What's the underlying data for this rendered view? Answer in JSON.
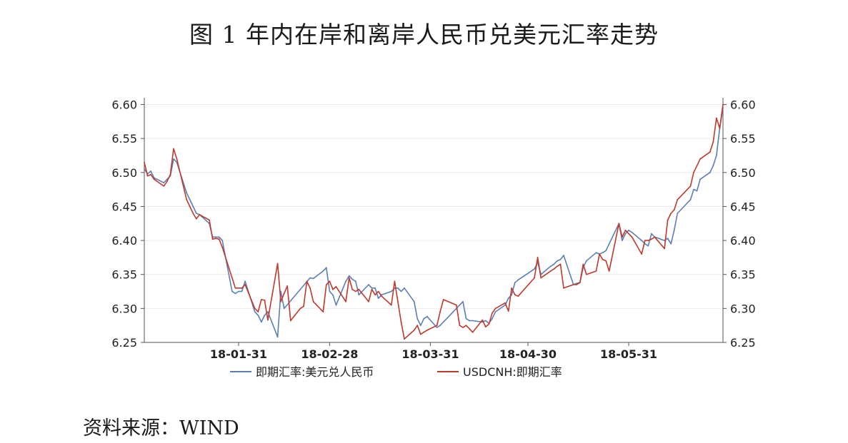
{
  "figure": {
    "title": "图 1 年内在岸和离岸人民币兑美元汇率走势",
    "source": "资料来源：WIND"
  },
  "chart_data": {
    "type": "line",
    "title": "",
    "xlabel": "",
    "ylabel": "",
    "ylim": [
      6.25,
      6.61
    ],
    "yticks": [
      "6.60",
      "6.55",
      "6.50",
      "6.45",
      "6.40",
      "6.35",
      "6.30",
      "6.25"
    ],
    "ytick_values": [
      6.6,
      6.55,
      6.5,
      6.45,
      6.4,
      6.35,
      6.3,
      6.25
    ],
    "xlim": [
      "2018-01-02",
      "2018-06-29"
    ],
    "xticks": [
      "18-01-31",
      "18-02-28",
      "18-03-31",
      "18-04-30",
      "18-05-31"
    ],
    "xtick_dates": [
      "2018-01-31",
      "2018-02-28",
      "2018-03-31",
      "2018-04-30",
      "2018-05-31"
    ],
    "grid": true,
    "dual_y_axis": true,
    "legend_position": "bottom-center",
    "series": [
      {
        "name": "即期汇率:美元兑人民币",
        "color": "#5a7fb6",
        "points": [
          [
            "2018-01-02",
            6.505
          ],
          [
            "2018-01-03",
            6.498
          ],
          [
            "2018-01-04",
            6.502
          ],
          [
            "2018-01-05",
            6.492
          ],
          [
            "2018-01-08",
            6.485
          ],
          [
            "2018-01-09",
            6.49
          ],
          [
            "2018-01-10",
            6.495
          ],
          [
            "2018-01-11",
            6.52
          ],
          [
            "2018-01-12",
            6.515
          ],
          [
            "2018-01-15",
            6.47
          ],
          [
            "2018-01-16",
            6.46
          ],
          [
            "2018-01-17",
            6.45
          ],
          [
            "2018-01-18",
            6.44
          ],
          [
            "2018-01-19",
            6.438
          ],
          [
            "2018-01-22",
            6.425
          ],
          [
            "2018-01-23",
            6.405
          ],
          [
            "2018-01-24",
            6.405
          ],
          [
            "2018-01-25",
            6.405
          ],
          [
            "2018-01-26",
            6.4
          ],
          [
            "2018-01-29",
            6.325
          ],
          [
            "2018-01-30",
            6.322
          ],
          [
            "2018-01-31",
            6.325
          ],
          [
            "2018-02-01",
            6.325
          ],
          [
            "2018-02-02",
            6.34
          ],
          [
            "2018-02-05",
            6.295
          ],
          [
            "2018-02-06",
            6.29
          ],
          [
            "2018-02-07",
            6.28
          ],
          [
            "2018-02-08",
            6.29
          ],
          [
            "2018-02-09",
            6.295
          ],
          [
            "2018-02-12",
            6.258
          ],
          [
            "2018-02-13",
            6.325
          ],
          [
            "2018-02-14",
            6.3
          ],
          [
            "2018-02-22",
            6.345
          ],
          [
            "2018-02-23",
            6.344
          ],
          [
            "2018-02-26",
            6.355
          ],
          [
            "2018-02-27",
            6.36
          ],
          [
            "2018-02-28",
            6.325
          ],
          [
            "2018-03-01",
            6.32
          ],
          [
            "2018-03-02",
            6.305
          ],
          [
            "2018-03-05",
            6.34
          ],
          [
            "2018-03-06",
            6.348
          ],
          [
            "2018-03-07",
            6.343
          ],
          [
            "2018-03-08",
            6.34
          ],
          [
            "2018-03-09",
            6.32
          ],
          [
            "2018-03-12",
            6.335
          ],
          [
            "2018-03-13",
            6.33
          ],
          [
            "2018-03-14",
            6.33
          ],
          [
            "2018-03-15",
            6.315
          ],
          [
            "2018-03-16",
            6.32
          ],
          [
            "2018-03-19",
            6.325
          ],
          [
            "2018-03-20",
            6.33
          ],
          [
            "2018-03-21",
            6.33
          ],
          [
            "2018-03-22",
            6.325
          ],
          [
            "2018-03-23",
            6.33
          ],
          [
            "2018-03-26",
            6.31
          ],
          [
            "2018-03-27",
            6.285
          ],
          [
            "2018-03-28",
            6.275
          ],
          [
            "2018-03-29",
            6.285
          ],
          [
            "2018-03-30",
            6.288
          ],
          [
            "2018-04-02",
            6.272
          ],
          [
            "2018-04-03",
            6.275
          ],
          [
            "2018-04-04",
            6.28
          ],
          [
            "2018-04-08",
            6.3
          ],
          [
            "2018-04-09",
            6.305
          ],
          [
            "2018-04-10",
            6.31
          ],
          [
            "2018-04-11",
            6.285
          ],
          [
            "2018-04-12",
            6.282
          ],
          [
            "2018-04-13",
            6.282
          ],
          [
            "2018-04-16",
            6.28
          ],
          [
            "2018-04-17",
            6.282
          ],
          [
            "2018-04-18",
            6.278
          ],
          [
            "2018-04-19",
            6.285
          ],
          [
            "2018-04-20",
            6.295
          ],
          [
            "2018-04-23",
            6.305
          ],
          [
            "2018-04-24",
            6.315
          ],
          [
            "2018-04-25",
            6.32
          ],
          [
            "2018-04-26",
            6.338
          ],
          [
            "2018-04-27",
            6.342
          ],
          [
            "2018-05-02",
            6.358
          ],
          [
            "2018-05-03",
            6.368
          ],
          [
            "2018-05-04",
            6.35
          ],
          [
            "2018-05-07",
            6.362
          ],
          [
            "2018-05-08",
            6.365
          ],
          [
            "2018-05-09",
            6.37
          ],
          [
            "2018-05-10",
            6.372
          ],
          [
            "2018-05-11",
            6.378
          ],
          [
            "2018-05-14",
            6.335
          ],
          [
            "2018-05-15",
            6.337
          ],
          [
            "2018-05-16",
            6.338
          ],
          [
            "2018-05-17",
            6.36
          ],
          [
            "2018-05-18",
            6.37
          ],
          [
            "2018-05-21",
            6.382
          ],
          [
            "2018-05-22",
            6.38
          ],
          [
            "2018-05-23",
            6.382
          ],
          [
            "2018-05-24",
            6.385
          ],
          [
            "2018-05-25",
            6.395
          ],
          [
            "2018-05-28",
            6.425
          ],
          [
            "2018-05-29",
            6.4
          ],
          [
            "2018-05-30",
            6.41
          ],
          [
            "2018-05-31",
            6.415
          ],
          [
            "2018-06-01",
            6.412
          ],
          [
            "2018-06-04",
            6.4
          ],
          [
            "2018-06-05",
            6.395
          ],
          [
            "2018-06-06",
            6.392
          ],
          [
            "2018-06-07",
            6.41
          ],
          [
            "2018-06-08",
            6.405
          ],
          [
            "2018-06-11",
            6.4
          ],
          [
            "2018-06-12",
            6.403
          ],
          [
            "2018-06-13",
            6.395
          ],
          [
            "2018-06-14",
            6.415
          ],
          [
            "2018-06-15",
            6.44
          ],
          [
            "2018-06-19",
            6.46
          ],
          [
            "2018-06-20",
            6.475
          ],
          [
            "2018-06-21",
            6.473
          ],
          [
            "2018-06-22",
            6.49
          ],
          [
            "2018-06-25",
            6.5
          ],
          [
            "2018-06-26",
            6.51
          ],
          [
            "2018-06-27",
            6.525
          ],
          [
            "2018-06-28",
            6.565
          ],
          [
            "2018-06-29",
            6.595
          ]
        ]
      },
      {
        "name": "USDCNH:即期汇率",
        "color": "#c0392b",
        "points": [
          [
            "2018-01-02",
            6.515
          ],
          [
            "2018-01-03",
            6.495
          ],
          [
            "2018-01-04",
            6.497
          ],
          [
            "2018-01-05",
            6.49
          ],
          [
            "2018-01-08",
            6.48
          ],
          [
            "2018-01-09",
            6.487
          ],
          [
            "2018-01-10",
            6.497
          ],
          [
            "2018-01-11",
            6.535
          ],
          [
            "2018-01-12",
            6.52
          ],
          [
            "2018-01-15",
            6.46
          ],
          [
            "2018-01-16",
            6.45
          ],
          [
            "2018-01-17",
            6.44
          ],
          [
            "2018-01-18",
            6.432
          ],
          [
            "2018-01-19",
            6.438
          ],
          [
            "2018-01-22",
            6.43
          ],
          [
            "2018-01-23",
            6.402
          ],
          [
            "2018-01-24",
            6.403
          ],
          [
            "2018-01-25",
            6.402
          ],
          [
            "2018-01-26",
            6.39
          ],
          [
            "2018-01-29",
            6.345
          ],
          [
            "2018-01-30",
            6.33
          ],
          [
            "2018-01-31",
            6.33
          ],
          [
            "2018-02-01",
            6.33
          ],
          [
            "2018-02-02",
            6.335
          ],
          [
            "2018-02-05",
            6.3
          ],
          [
            "2018-02-06",
            6.295
          ],
          [
            "2018-02-07",
            6.313
          ],
          [
            "2018-02-08",
            6.312
          ],
          [
            "2018-02-09",
            6.283
          ],
          [
            "2018-02-12",
            6.366
          ],
          [
            "2018-02-13",
            6.31
          ],
          [
            "2018-02-14",
            6.322
          ],
          [
            "2018-02-15",
            6.333
          ],
          [
            "2018-02-16",
            6.282
          ],
          [
            "2018-02-19",
            6.3
          ],
          [
            "2018-02-20",
            6.303
          ],
          [
            "2018-02-21",
            6.34
          ],
          [
            "2018-02-22",
            6.33
          ],
          [
            "2018-02-23",
            6.31
          ],
          [
            "2018-02-26",
            6.295
          ],
          [
            "2018-02-27",
            6.335
          ],
          [
            "2018-02-28",
            6.34
          ],
          [
            "2018-03-01",
            6.328
          ],
          [
            "2018-03-02",
            6.332
          ],
          [
            "2018-03-05",
            6.31
          ],
          [
            "2018-03-06",
            6.345
          ],
          [
            "2018-03-07",
            6.328
          ],
          [
            "2018-03-08",
            6.325
          ],
          [
            "2018-03-09",
            6.328
          ],
          [
            "2018-03-12",
            6.31
          ],
          [
            "2018-03-13",
            6.328
          ],
          [
            "2018-03-14",
            6.32
          ],
          [
            "2018-03-15",
            6.325
          ],
          [
            "2018-03-16",
            6.318
          ],
          [
            "2018-03-19",
            6.305
          ],
          [
            "2018-03-20",
            6.34
          ],
          [
            "2018-03-21",
            6.31
          ],
          [
            "2018-03-22",
            6.28
          ],
          [
            "2018-03-23",
            6.255
          ],
          [
            "2018-03-26",
            6.268
          ],
          [
            "2018-03-27",
            6.275
          ],
          [
            "2018-03-28",
            6.262
          ],
          [
            "2018-03-29",
            6.265
          ],
          [
            "2018-03-30",
            6.268
          ],
          [
            "2018-04-02",
            6.275
          ],
          [
            "2018-04-03",
            6.295
          ],
          [
            "2018-04-04",
            6.313
          ],
          [
            "2018-04-08",
            6.305
          ],
          [
            "2018-04-09",
            6.275
          ],
          [
            "2018-04-10",
            6.272
          ],
          [
            "2018-04-11",
            6.275
          ],
          [
            "2018-04-12",
            6.27
          ],
          [
            "2018-04-13",
            6.265
          ],
          [
            "2018-04-16",
            6.283
          ],
          [
            "2018-04-17",
            6.273
          ],
          [
            "2018-04-18",
            6.277
          ],
          [
            "2018-04-19",
            6.293
          ],
          [
            "2018-04-20",
            6.3
          ],
          [
            "2018-04-23",
            6.308
          ],
          [
            "2018-04-24",
            6.296
          ],
          [
            "2018-04-25",
            6.33
          ],
          [
            "2018-04-26",
            6.32
          ],
          [
            "2018-04-27",
            6.318
          ],
          [
            "2018-05-02",
            6.345
          ],
          [
            "2018-05-03",
            6.375
          ],
          [
            "2018-05-04",
            6.345
          ],
          [
            "2018-05-07",
            6.355
          ],
          [
            "2018-05-08",
            6.358
          ],
          [
            "2018-05-09",
            6.362
          ],
          [
            "2018-05-10",
            6.365
          ],
          [
            "2018-05-11",
            6.33
          ],
          [
            "2018-05-14",
            6.335
          ],
          [
            "2018-05-15",
            6.335
          ],
          [
            "2018-05-16",
            6.338
          ],
          [
            "2018-05-17",
            6.365
          ],
          [
            "2018-05-18",
            6.35
          ],
          [
            "2018-05-21",
            6.355
          ],
          [
            "2018-05-22",
            6.38
          ],
          [
            "2018-05-23",
            6.372
          ],
          [
            "2018-05-24",
            6.37
          ],
          [
            "2018-05-25",
            6.355
          ],
          [
            "2018-05-28",
            6.425
          ],
          [
            "2018-05-29",
            6.405
          ],
          [
            "2018-05-30",
            6.415
          ],
          [
            "2018-05-31",
            6.41
          ],
          [
            "2018-06-01",
            6.405
          ],
          [
            "2018-06-04",
            6.38
          ],
          [
            "2018-06-05",
            6.4
          ],
          [
            "2018-06-06",
            6.4
          ],
          [
            "2018-06-07",
            6.402
          ],
          [
            "2018-06-08",
            6.405
          ],
          [
            "2018-06-11",
            6.388
          ],
          [
            "2018-06-12",
            6.43
          ],
          [
            "2018-06-13",
            6.44
          ],
          [
            "2018-06-14",
            6.445
          ],
          [
            "2018-06-15",
            6.46
          ],
          [
            "2018-06-19",
            6.48
          ],
          [
            "2018-06-20",
            6.5
          ],
          [
            "2018-06-21",
            6.51
          ],
          [
            "2018-06-22",
            6.52
          ],
          [
            "2018-06-25",
            6.53
          ],
          [
            "2018-06-26",
            6.545
          ],
          [
            "2018-06-27",
            6.58
          ],
          [
            "2018-06-28",
            6.565
          ],
          [
            "2018-06-29",
            6.6
          ]
        ]
      }
    ]
  }
}
